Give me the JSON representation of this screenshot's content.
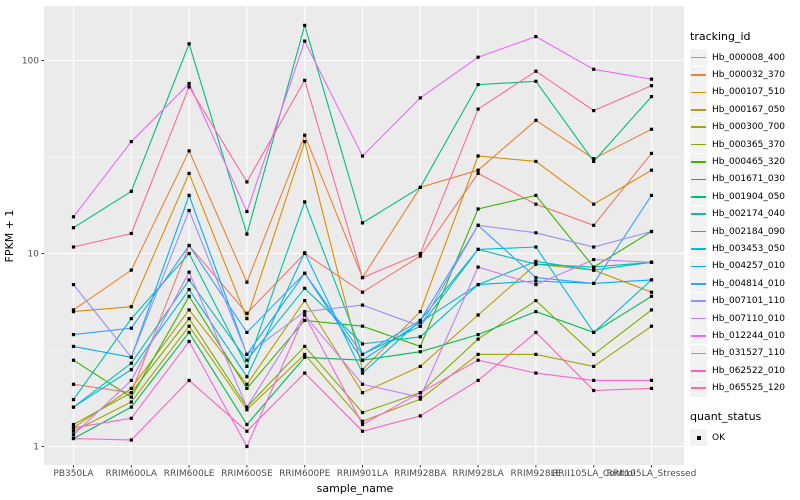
{
  "figure": {
    "bg": "#FFFFFF",
    "panel_bg": "#EBEBEB",
    "grid_color": "#FFFFFF",
    "axis_tick_color": "#333333",
    "tick_label_color": "#4D4D4D",
    "point_color": "#000000"
  },
  "legend": {
    "tracking_title": "tracking_id",
    "quant_title": "quant_status",
    "quant_items": [
      {
        "label": "OK"
      }
    ]
  },
  "chart_data": {
    "type": "line",
    "title": "",
    "xlabel": "sample_name",
    "ylabel": "FPKM + 1",
    "y_scale": "log10",
    "y_ticks": [
      1,
      10,
      100
    ],
    "y_minor_ticks": [
      3.1623,
      31.623
    ],
    "ylim": [
      0.8,
      190
    ],
    "grid": true,
    "legend_position": "right",
    "point_shape": "square",
    "categories": [
      "PB350LA",
      "RRIM600LA",
      "RRIM600LE",
      "RRIM600SE",
      "RRIM600PE",
      "RRIM901LA",
      "RRIM928BA",
      "RRIM928LA",
      "RRIM928LE",
      "RRII105LA_Control",
      "RRII105LA_Stressed"
    ],
    "series": [
      {
        "name": "Hb_000008_400",
        "color": "#F8766D",
        "quant_status": "OK",
        "values": [
          2.1,
          1.9,
          11,
          4.9,
          10,
          6.3,
          9.7,
          26,
          18,
          14,
          33
        ]
      },
      {
        "name": "Hb_000032_370",
        "color": "#EA8331",
        "quant_status": "OK",
        "values": [
          5.1,
          8.2,
          34,
          7.1,
          41,
          7.5,
          22,
          27,
          49,
          31,
          44
        ]
      },
      {
        "name": "Hb_000107_510",
        "color": "#D89000",
        "quant_status": "OK",
        "values": [
          5.0,
          5.3,
          26,
          4.6,
          38,
          2.5,
          5.0,
          32,
          30,
          18,
          27
        ]
      },
      {
        "name": "Hb_000167_050",
        "color": "#C09B00",
        "quant_status": "OK",
        "values": [
          1.25,
          2.0,
          5.1,
          2.1,
          5.7,
          1.9,
          2.6,
          4.8,
          8.8,
          8.2,
          6.3
        ]
      },
      {
        "name": "Hb_000300_700",
        "color": "#A3A500",
        "quant_status": "OK",
        "values": [
          1.2,
          1.7,
          4.2,
          1.55,
          3.0,
          1.35,
          1.76,
          3.0,
          3.0,
          2.6,
          4.2
        ]
      },
      {
        "name": "Hb_000365_370",
        "color": "#7CAE00",
        "quant_status": "OK",
        "values": [
          1.3,
          1.9,
          4.6,
          1.6,
          3.3,
          1.5,
          1.9,
          3.6,
          5.7,
          3.0,
          5.1
        ]
      },
      {
        "name": "Hb_000465_320",
        "color": "#39B600",
        "quant_status": "OK",
        "values": [
          2.8,
          1.8,
          6.0,
          2.0,
          4.5,
          4.2,
          3.3,
          17,
          20,
          8.5,
          13
        ]
      },
      {
        "name": "Hb_001671_030",
        "color": "#00BB4E",
        "quant_status": "OK",
        "values": [
          1.1,
          1.6,
          3.9,
          1.3,
          2.9,
          2.8,
          3.1,
          3.8,
          5.0,
          3.9,
          6.0
        ]
      },
      {
        "name": "Hb_001904_050",
        "color": "#00BF7D",
        "quant_status": "OK",
        "values": [
          13.6,
          21,
          122,
          12.6,
          152,
          14.4,
          22,
          75,
          78,
          30,
          65
        ]
      },
      {
        "name": "Hb_002174_040",
        "color": "#00C1A3",
        "quant_status": "OK",
        "values": [
          1.75,
          4.6,
          10,
          2.6,
          18.5,
          3.0,
          4.2,
          10.5,
          8.8,
          8.5,
          9.0
        ]
      },
      {
        "name": "Hb_002184_090",
        "color": "#00BFC4",
        "quant_status": "OK",
        "values": [
          1.6,
          2.7,
          7.3,
          2.8,
          6.6,
          3.4,
          3.7,
          6.9,
          9.1,
          8.2,
          9.0
        ]
      },
      {
        "name": "Hb_003453_050",
        "color": "#00BAE0",
        "quant_status": "OK",
        "values": [
          1.6,
          2.5,
          6.5,
          2.3,
          10.1,
          2.4,
          4.5,
          10.5,
          10.8,
          3.9,
          7.3
        ]
      },
      {
        "name": "Hb_004257_010",
        "color": "#00B0F6",
        "quant_status": "OK",
        "values": [
          3.3,
          2.9,
          20,
          3.0,
          7.9,
          2.8,
          4.4,
          6.9,
          7.2,
          7.0,
          7.3
        ]
      },
      {
        "name": "Hb_004814_010",
        "color": "#35A2FF",
        "quant_status": "OK",
        "values": [
          3.8,
          4.1,
          11,
          3.9,
          7.9,
          3.0,
          4.5,
          14,
          7.5,
          7.0,
          20
        ]
      },
      {
        "name": "Hb_007101_110",
        "color": "#9590FF",
        "quant_status": "OK",
        "values": [
          6.9,
          2.9,
          16.7,
          3.0,
          5.0,
          5.4,
          4.2,
          14,
          12.8,
          10.8,
          13
        ]
      },
      {
        "name": "Hb_007110_010",
        "color": "#C77CFF",
        "quant_status": "OK",
        "values": [
          1.15,
          2.2,
          8.0,
          1.6,
          4.8,
          2.1,
          1.8,
          8.5,
          6.9,
          9.3,
          9.0
        ]
      },
      {
        "name": "Hb_012244_010",
        "color": "#E76BF3",
        "quant_status": "OK",
        "values": [
          15.5,
          38,
          76,
          16.5,
          126,
          32,
          64,
          104,
          133,
          90,
          80
        ]
      },
      {
        "name": "Hb_031527_110",
        "color": "#FA62DB",
        "quant_status": "OK",
        "values": [
          1.25,
          1.4,
          3.5,
          1.0,
          4.8,
          1.3,
          1.9,
          2.8,
          2.4,
          2.2,
          2.2
        ]
      },
      {
        "name": "Hb_062522_010",
        "color": "#FF62BC",
        "quant_status": "OK",
        "values": [
          1.1,
          1.08,
          2.2,
          1.2,
          2.4,
          1.2,
          1.44,
          2.2,
          3.9,
          1.95,
          2.0
        ]
      },
      {
        "name": "Hb_065525_120",
        "color": "#FF6A98",
        "quant_status": "OK",
        "values": [
          10.8,
          12.7,
          73,
          23.5,
          79,
          7.5,
          10,
          56,
          88,
          55,
          74
        ]
      }
    ]
  }
}
